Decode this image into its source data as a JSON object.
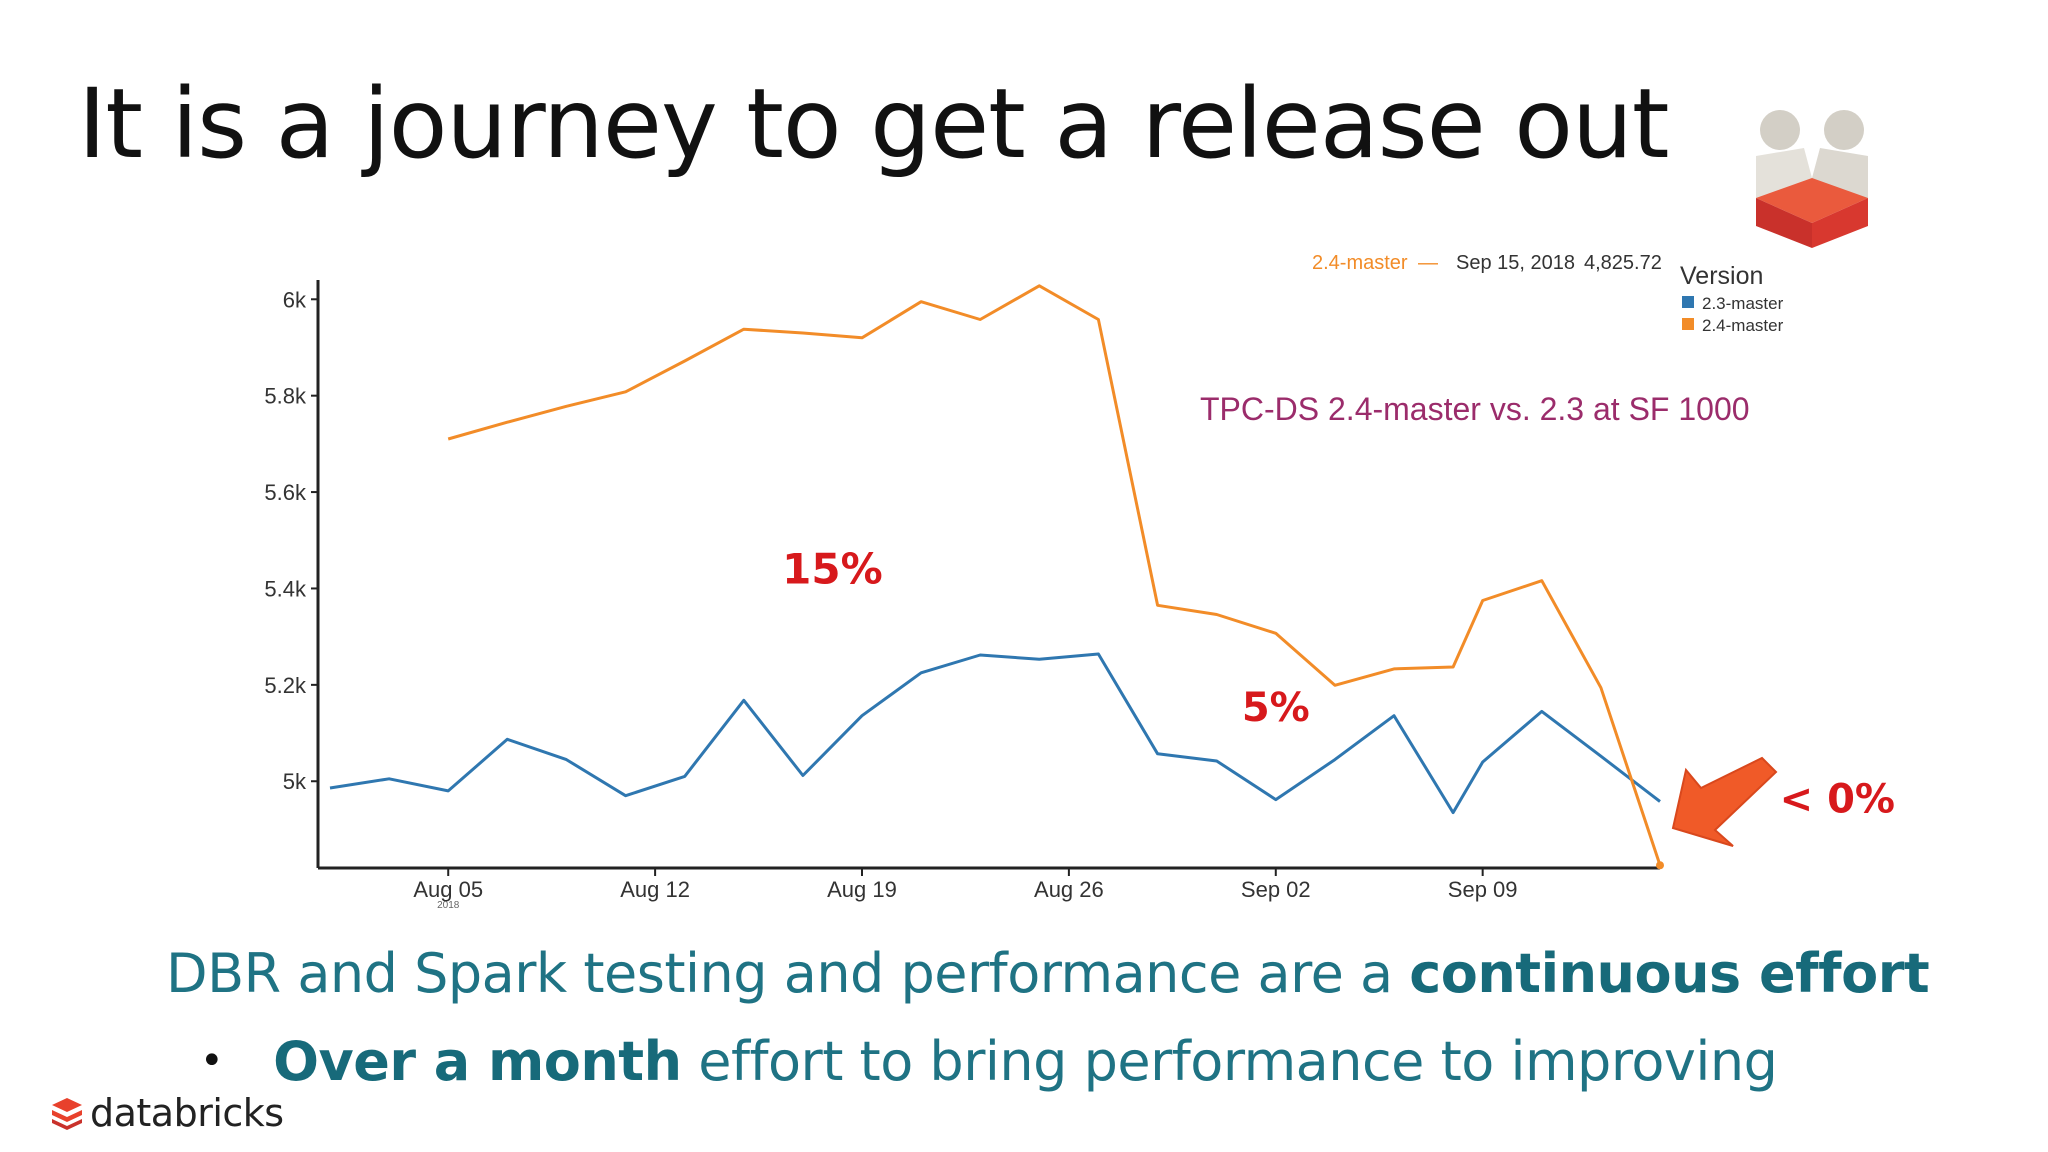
{
  "slide": {
    "title": "It is a journey to get a release out",
    "bottom_line1_regular": "DBR and Spark testing and performance are a ",
    "bottom_line1_bold": "continuous effort",
    "bottom_bullet": "•",
    "bottom_line2_bold": "Over a month",
    "bottom_line2_regular": " effort to bring performance to improving",
    "footer_logo_text": "databricks"
  },
  "colors": {
    "series_23": "#2f77b0",
    "series_24": "#f28c28",
    "annotation": "#d7191c",
    "subtitle": "#9b2c6b",
    "arrow": "#f05a28",
    "teal_text": "#1f7384"
  },
  "chart_data": {
    "type": "line",
    "title": "TPC-DS 2.4-master vs. 2.3 at SF 1000",
    "xlabel": "",
    "ylabel": "",
    "x_range": [
      "2018-08-01",
      "2018-09-15"
    ],
    "ylim": [
      4820,
      6040
    ],
    "y_ticks": [
      5000,
      5200,
      5400,
      5600,
      5800,
      6000
    ],
    "y_tick_labels": [
      "5k",
      "5.2k",
      "5.4k",
      "5.6k",
      "5.8k",
      "6k"
    ],
    "x_ticks": [
      "2018-08-05",
      "2018-08-12",
      "2018-08-19",
      "2018-08-26",
      "2018-09-02",
      "2018-09-09"
    ],
    "x_tick_labels": [
      "Aug 05",
      "Aug 12",
      "Aug 19",
      "Aug 26",
      "Sep 02",
      "Sep 09"
    ],
    "x_tick_sublabel": "2018",
    "grid": false,
    "legend": {
      "title": "Version",
      "placement": "top-right"
    },
    "series": [
      {
        "name": "2.3-master",
        "color": "#2f77b0",
        "x": [
          "2018-08-01",
          "2018-08-03",
          "2018-08-05",
          "2018-08-07",
          "2018-08-09",
          "2018-08-11",
          "2018-08-13",
          "2018-08-15",
          "2018-08-17",
          "2018-08-19",
          "2018-08-21",
          "2018-08-23",
          "2018-08-25",
          "2018-08-27",
          "2018-08-29",
          "2018-08-31",
          "2018-09-02",
          "2018-09-04",
          "2018-09-06",
          "2018-09-08",
          "2018-09-09",
          "2018-09-11",
          "2018-09-13",
          "2018-09-15"
        ],
        "values": [
          4986,
          5005,
          4980,
          5087,
          5045,
          4970,
          5010,
          5168,
          5012,
          5136,
          5225,
          5262,
          5253,
          5264,
          5057,
          5042,
          4962,
          5045,
          5136,
          4935,
          5040,
          5145,
          5052,
          4958
        ]
      },
      {
        "name": "2.4-master",
        "color": "#f28c28",
        "x": [
          "2018-08-05",
          "2018-08-07",
          "2018-08-09",
          "2018-08-11",
          "2018-08-13",
          "2018-08-15",
          "2018-08-17",
          "2018-08-19",
          "2018-08-21",
          "2018-08-23",
          "2018-08-25",
          "2018-08-27",
          "2018-08-29",
          "2018-08-31",
          "2018-09-02",
          "2018-09-04",
          "2018-09-06",
          "2018-09-08",
          "2018-09-09",
          "2018-09-11",
          "2018-09-13",
          "2018-09-15"
        ],
        "values": [
          5710,
          5745,
          5778,
          5808,
          5872,
          5938,
          5930,
          5920,
          5995,
          5958,
          6028,
          5958,
          5365,
          5346,
          5307,
          5199,
          5233,
          5237,
          5375,
          5416,
          5194,
          4825.72
        ]
      }
    ],
    "tooltip": {
      "series": "2.4-master",
      "dash": "—",
      "date": "Sep 15, 2018",
      "value": "4,825.72"
    },
    "annotations": [
      {
        "text": "15%",
        "x": "2018-08-18",
        "y": 5410,
        "size": 42
      },
      {
        "text": "5%",
        "x": "2018-09-02",
        "y": 5125,
        "size": 40
      },
      {
        "text": "< 0%",
        "x": "2018-09-21",
        "y": 4935,
        "size": 40
      }
    ]
  }
}
